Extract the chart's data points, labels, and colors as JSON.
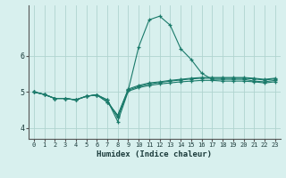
{
  "xlabel": "Humidex (Indice chaleur)",
  "ylabel": "",
  "bg_color": "#d8f0ee",
  "grid_color": "#b0d4d0",
  "line_color": "#1a7a6a",
  "x": [
    0,
    1,
    2,
    3,
    4,
    5,
    6,
    7,
    8,
    9,
    10,
    11,
    12,
    13,
    14,
    15,
    16,
    17,
    18,
    19,
    20,
    21,
    22,
    23
  ],
  "series": [
    [
      5.0,
      4.93,
      4.82,
      4.82,
      4.78,
      4.88,
      4.92,
      4.78,
      4.18,
      5.02,
      5.12,
      5.18,
      5.22,
      5.25,
      5.28,
      5.3,
      5.32,
      5.32,
      5.3,
      5.3,
      5.3,
      5.28,
      5.25,
      5.28
    ],
    [
      5.0,
      4.93,
      4.82,
      4.82,
      4.78,
      4.88,
      4.92,
      4.78,
      4.28,
      5.05,
      5.15,
      5.22,
      5.26,
      5.3,
      5.33,
      5.36,
      5.38,
      5.38,
      5.38,
      5.38,
      5.38,
      5.36,
      5.33,
      5.36
    ],
    [
      5.0,
      4.93,
      4.82,
      4.82,
      4.78,
      4.88,
      4.92,
      4.72,
      4.35,
      5.08,
      5.18,
      5.25,
      5.28,
      5.32,
      5.35,
      5.38,
      5.4,
      5.4,
      5.4,
      5.4,
      5.4,
      5.38,
      5.35,
      5.38
    ],
    [
      5.0,
      4.93,
      4.82,
      4.82,
      4.78,
      4.88,
      4.92,
      4.72,
      4.35,
      5.05,
      6.25,
      7.0,
      7.1,
      6.85,
      6.2,
      5.9,
      5.52,
      5.35,
      5.35,
      5.35,
      5.35,
      5.3,
      5.28,
      5.32
    ]
  ],
  "ylim": [
    3.7,
    7.4
  ],
  "xlim": [
    -0.5,
    23.5
  ],
  "yticks": [
    4,
    5,
    6
  ],
  "xticks": [
    0,
    1,
    2,
    3,
    4,
    5,
    6,
    7,
    8,
    9,
    10,
    11,
    12,
    13,
    14,
    15,
    16,
    17,
    18,
    19,
    20,
    21,
    22,
    23
  ]
}
